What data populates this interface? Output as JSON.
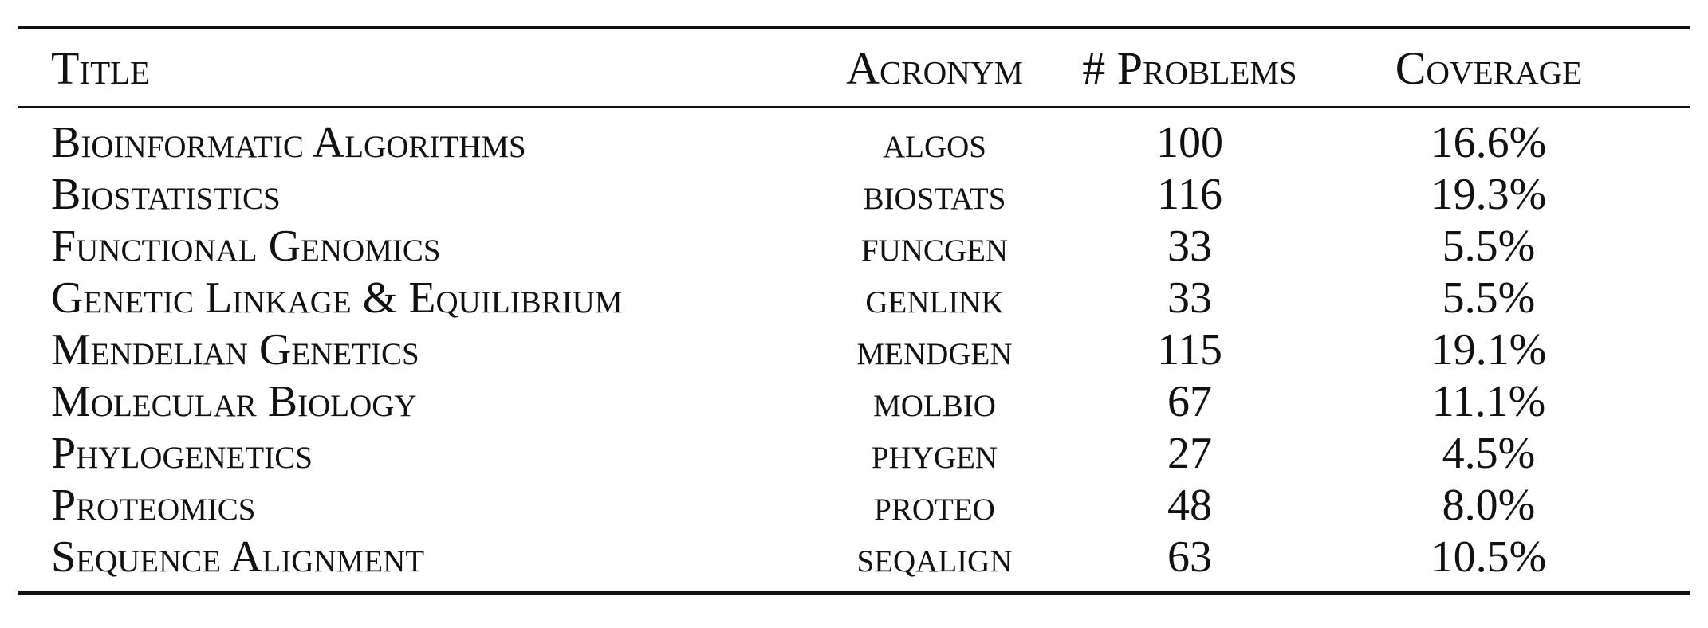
{
  "table": {
    "headers": {
      "title": "Title",
      "acronym": "Acronym",
      "problems": "# Problems",
      "coverage": "Coverage"
    },
    "rows": [
      {
        "title": "Bioinformatic Algorithms",
        "acronym": "algos",
        "problems": "100",
        "coverage": "16.6%"
      },
      {
        "title": "Biostatistics",
        "acronym": "biostats",
        "problems": "116",
        "coverage": "19.3%"
      },
      {
        "title": "Functional Genomics",
        "acronym": "funcgen",
        "problems": "33",
        "coverage": "5.5%"
      },
      {
        "title": "Genetic Linkage & Equilibrium",
        "acronym": "genlink",
        "problems": "33",
        "coverage": "5.5%"
      },
      {
        "title": "Mendelian Genetics",
        "acronym": "mendgen",
        "problems": "115",
        "coverage": "19.1%"
      },
      {
        "title": "Molecular Biology",
        "acronym": "molbio",
        "problems": "67",
        "coverage": "11.1%"
      },
      {
        "title": "Phylogenetics",
        "acronym": "phygen",
        "problems": "27",
        "coverage": "4.5%"
      },
      {
        "title": "Proteomics",
        "acronym": "proteo",
        "problems": "48",
        "coverage": "8.0%"
      },
      {
        "title": "Sequence Alignment",
        "acronym": "seqalign",
        "problems": "63",
        "coverage": "10.5%"
      }
    ]
  }
}
